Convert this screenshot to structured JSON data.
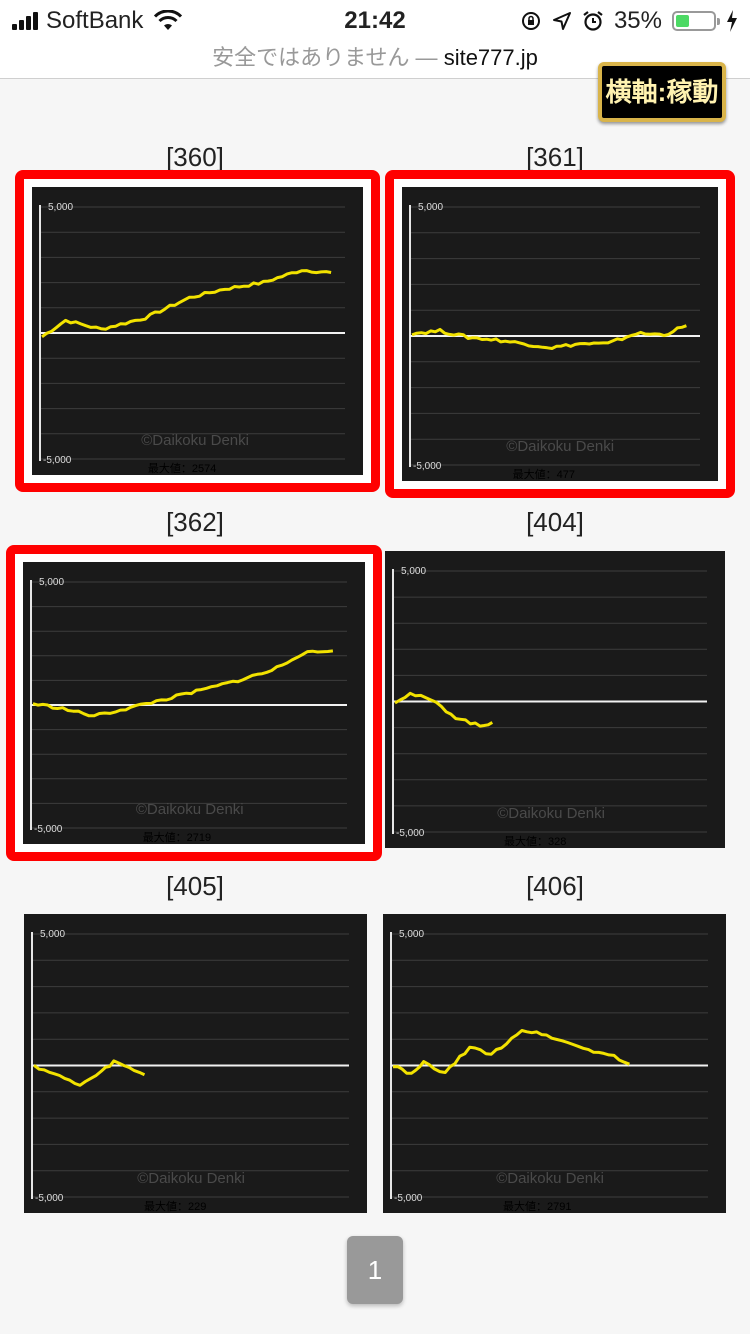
{
  "status_bar": {
    "carrier": "SoftBank",
    "time": "21:42",
    "battery_percent": "35%",
    "battery_level": 0.35
  },
  "url_bar": {
    "warning": "安全ではありません —",
    "host": "site777.jp"
  },
  "axis_toggle": {
    "label": "横軸:稼動"
  },
  "graphs": [
    {
      "label": "[360]",
      "highlighted": true,
      "y_max_label": "5,000",
      "y_min_label": "-5,000",
      "watermark": "©Daikoku Denki",
      "max_value": "最大値：2574"
    },
    {
      "label": "[361]",
      "highlighted": true,
      "y_max_label": "5,000",
      "y_min_label": "-5,000",
      "watermark": "©Daikoku Denki",
      "max_value": "最大値：477"
    },
    {
      "label": "[362]",
      "highlighted": true,
      "y_max_label": "5,000",
      "y_min_label": "-5,000",
      "watermark": "©Daikoku Denki",
      "max_value": "最大値：2719"
    },
    {
      "label": "[404]",
      "highlighted": false,
      "y_max_label": "5,000",
      "y_min_label": "-5,000",
      "watermark": "©Daikoku Denki",
      "max_value": "最大値：328"
    },
    {
      "label": "[405]",
      "highlighted": false,
      "y_max_label": "5,000",
      "y_min_label": "-5,000",
      "watermark": "©Daikoku Denki",
      "max_value": "最大値：229"
    },
    {
      "label": "[406]",
      "highlighted": false,
      "y_max_label": "5,000",
      "y_min_label": "-5,000",
      "watermark": "©Daikoku Denki",
      "max_value": "最大値：2791"
    }
  ],
  "pagination": {
    "current_page": "1"
  },
  "colors": {
    "highlight": "#ff0000",
    "line": "#f2e200",
    "graph_bg": "#1a1a1a"
  }
}
